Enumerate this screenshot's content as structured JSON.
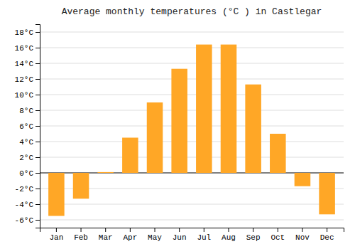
{
  "chart_data": {
    "type": "bar",
    "title": "Average monthly temperatures (°C ) in Castlegar",
    "categories": [
      "Jan",
      "Feb",
      "Mar",
      "Apr",
      "May",
      "Jun",
      "Jul",
      "Aug",
      "Sep",
      "Oct",
      "Nov",
      "Dec"
    ],
    "values": [
      -5.5,
      -3.3,
      0.1,
      4.5,
      9.0,
      13.3,
      16.4,
      16.4,
      11.3,
      5.0,
      -1.7,
      -5.3
    ],
    "color": "#FFA726",
    "ylim": [
      -7,
      19
    ],
    "yticks": [
      {
        "value": -6,
        "label": "-6°C"
      },
      {
        "value": -4,
        "label": "-4°C"
      },
      {
        "value": -2,
        "label": "-2°C"
      },
      {
        "value": 0,
        "label": "0°C"
      },
      {
        "value": 2,
        "label": "2°C"
      },
      {
        "value": 4,
        "label": "4°C"
      },
      {
        "value": 6,
        "label": "6°C"
      },
      {
        "value": 8,
        "label": "8°C"
      },
      {
        "value": 10,
        "label": "10°C"
      },
      {
        "value": 12,
        "label": "12°C"
      },
      {
        "value": 14,
        "label": "14°C"
      },
      {
        "value": 16,
        "label": "16°C"
      },
      {
        "value": 18,
        "label": "18°C"
      }
    ],
    "grid": true
  }
}
